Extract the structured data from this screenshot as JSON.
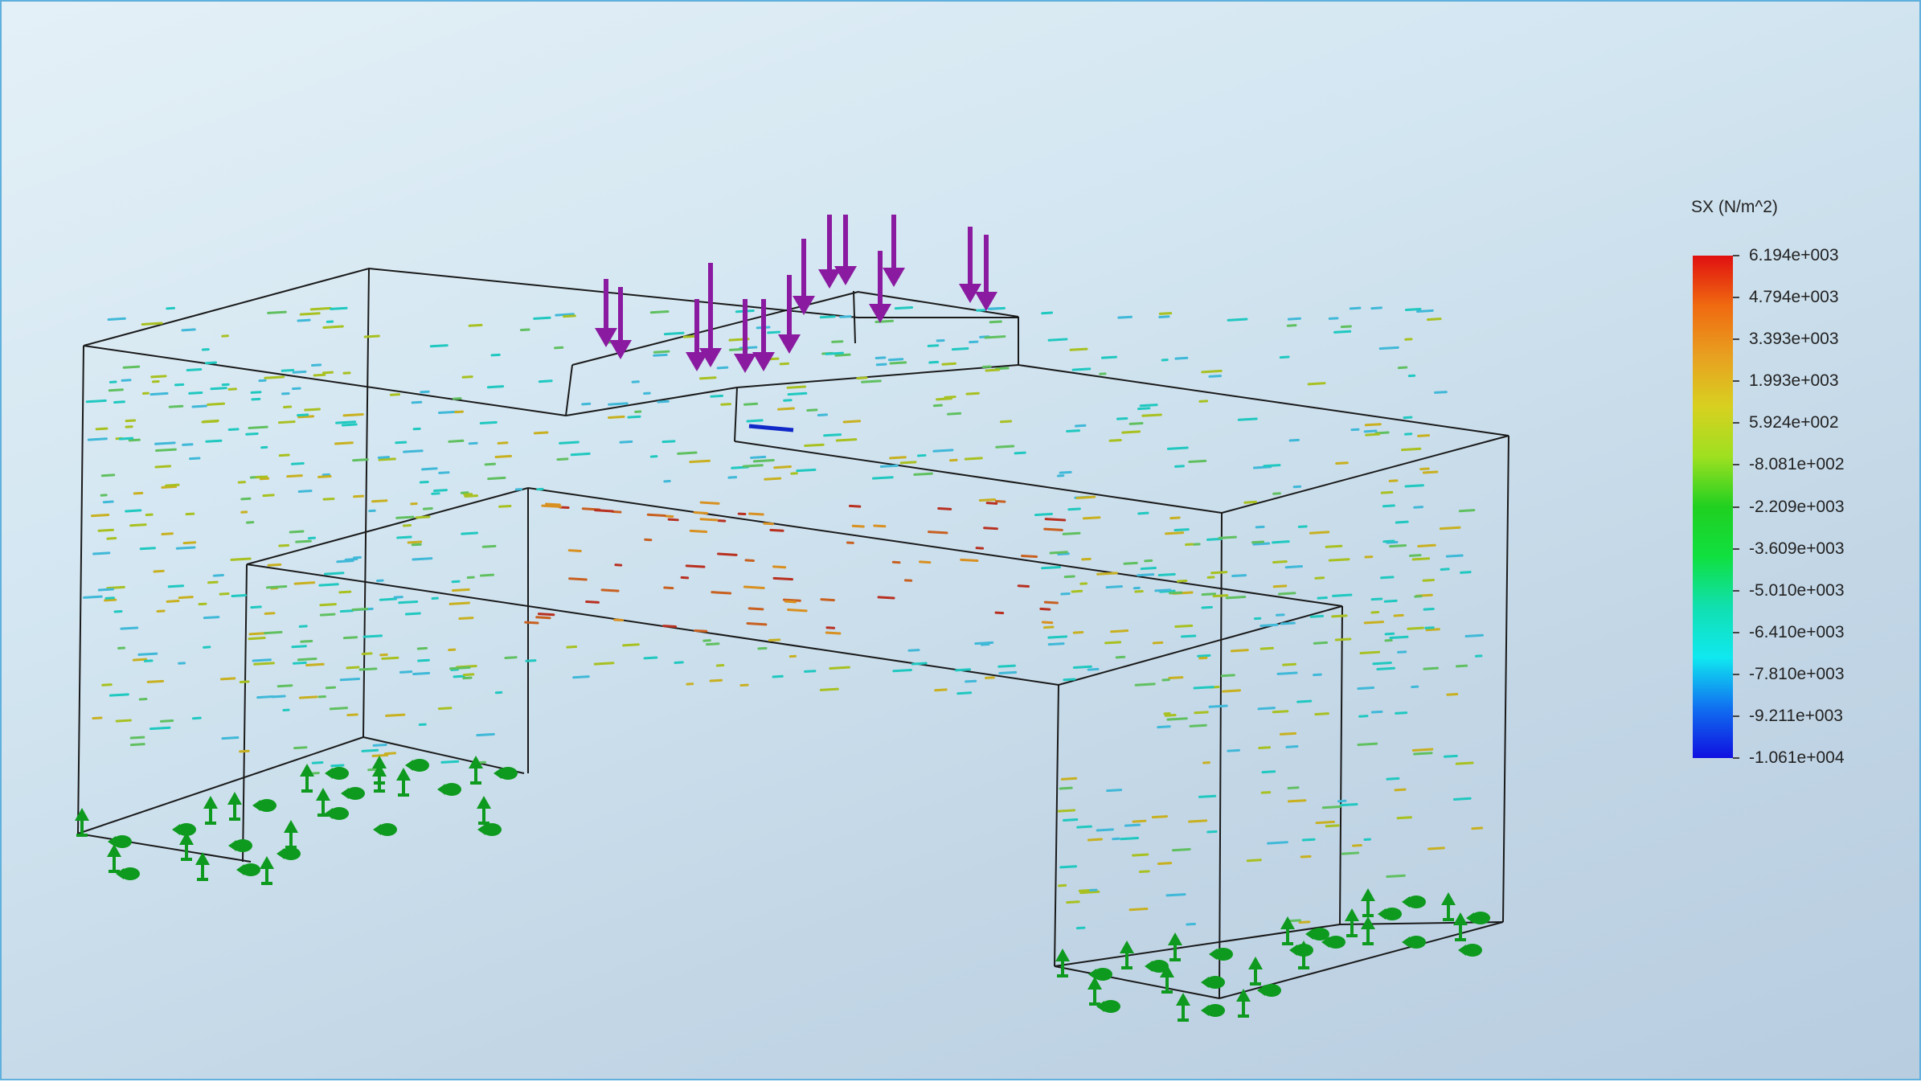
{
  "legend": {
    "title": "SX (N/m^2)",
    "ticks": [
      "6.194e+003",
      "4.794e+003",
      "3.393e+003",
      "1.993e+003",
      "5.924e+002",
      "-8.081e+002",
      "-2.209e+003",
      "-3.609e+003",
      "-5.010e+003",
      "-6.410e+003",
      "-7.810e+003",
      "-9.211e+003",
      "-1.061e+004"
    ]
  },
  "colors": {
    "load_arrow": "#8a1aa0",
    "fixture": "#0e9a1e",
    "edges": "#1a1a1a"
  },
  "scene": {
    "model": "bracket-bridge-part",
    "load": "downward-force-arrows",
    "fixtures": "fixed-geometry-supports",
    "stress_vectors": "principal-stress-arrows"
  }
}
